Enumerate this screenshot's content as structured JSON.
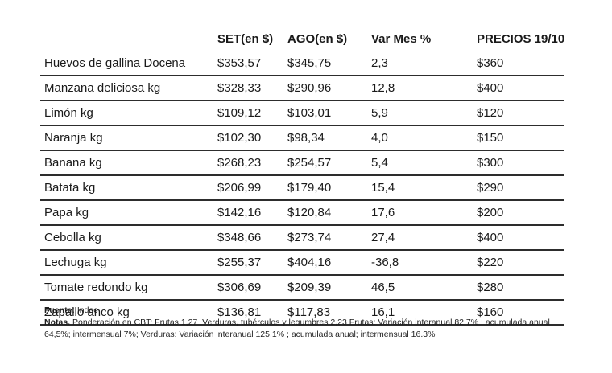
{
  "chart_data": {
    "type": "table",
    "columns": [
      "",
      "SET(en $)",
      "AGO(en $)",
      "Var Mes %",
      "PRECIOS 19/10"
    ],
    "rows": [
      {
        "item": "Huevos de gallina Docena",
        "set": "$353,57",
        "ago": "$345,75",
        "var_mes": "2,3",
        "precio": "$360"
      },
      {
        "item": "Manzana deliciosa kg",
        "set": "$328,33",
        "ago": "$290,96",
        "var_mes": "12,8",
        "precio": "$400"
      },
      {
        "item": "Limón kg",
        "set": "$109,12",
        "ago": "$103,01",
        "var_mes": "5,9",
        "precio": "$120"
      },
      {
        "item": "Naranja kg",
        "set": "$102,30",
        "ago": "$98,34",
        "var_mes": "4,0",
        "precio": "$150"
      },
      {
        "item": "Banana kg",
        "set": "$268,23",
        "ago": "$254,57",
        "var_mes": "5,4",
        "precio": "$300"
      },
      {
        "item": "Batata kg",
        "set": "$206,99",
        "ago": "$179,40",
        "var_mes": "15,4",
        "precio": "$290"
      },
      {
        "item": "Papa kg",
        "set": "$142,16",
        "ago": "$120,84",
        "var_mes": "17,6",
        "precio": "$200"
      },
      {
        "item": "Cebolla kg",
        "set": "$348,66",
        "ago": "$273,74",
        "var_mes": "27,4",
        "precio": "$400"
      },
      {
        "item": "Lechuga kg",
        "set": "$255,37",
        "ago": "$404,16",
        "var_mes": "-36,8",
        "precio": "$220"
      },
      {
        "item": "Tomate redondo kg",
        "set": "$306,69",
        "ago": "$209,39",
        "var_mes": "46,5",
        "precio": "$280"
      },
      {
        "item": "Zapallo anco kg",
        "set": "$136,81",
        "ago": "$117,83",
        "var_mes": "16,1",
        "precio": "$160"
      }
    ],
    "layout_hints": {
      "grid": "horizontal row separators only",
      "header_style": "bold, no underline",
      "alignment": "all columns left-aligned"
    }
  },
  "footer": {
    "fuente_label": "Fuente:",
    "fuente_value": " Indec",
    "notas_label": "Notas.",
    "notas_text": " Ponderación en CBT: Frutas 1,27  Verduras, tubérculos y legumbres 2,23 Frutas: Variación interanual 82,7% ; acumulada anual 64,5%; intermensual 7%; Verduras: Variación interanual 125,1% ; acumulada anual; intermensual 16.3%"
  },
  "colors": {
    "background": "#ffffff",
    "text": "#1a1a1a",
    "row_separator": "#2d2d2d"
  }
}
